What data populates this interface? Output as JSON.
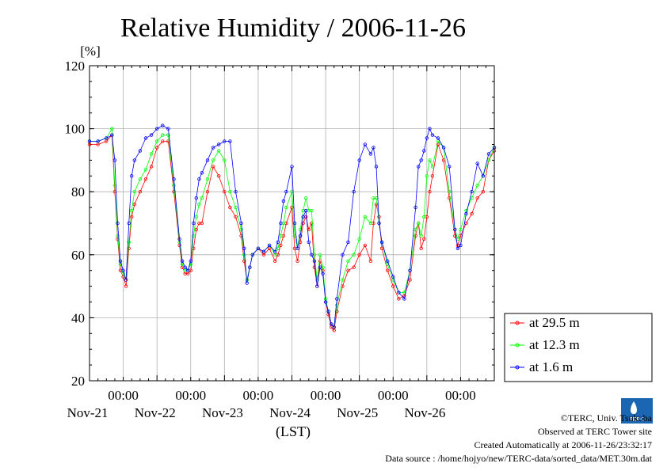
{
  "chart_data": {
    "type": "line",
    "title": "Relative Humidity / 2006-11-26",
    "ylabel": "[%]",
    "xlabel": "(LST)",
    "ylim": [
      20,
      120
    ],
    "y_ticks": [
      "20",
      "40",
      "60",
      "80",
      "100",
      "120"
    ],
    "x_range_hours": [
      0,
      144
    ],
    "x_ticks": [
      {
        "time": "00:00",
        "date": "Nov-21",
        "hour": 24
      },
      {
        "time": "00:00",
        "date": "Nov-22",
        "hour": 48
      },
      {
        "time": "00:00",
        "date": "Nov-23",
        "hour": 72
      },
      {
        "time": "00:00",
        "date": "Nov-24",
        "hour": 96
      },
      {
        "time": "00:00",
        "date": "Nov-25",
        "hour": 120
      },
      {
        "time": "00:00",
        "date": "Nov-26",
        "hour": 144
      }
    ],
    "grid": true,
    "legend_position": "right-bottom",
    "series": [
      {
        "name": "at 29.5 m",
        "color": "#ff0000",
        "x": [
          0,
          3,
          6,
          8,
          9,
          10,
          11,
          12,
          13,
          14,
          15,
          16,
          18,
          20,
          22,
          24,
          26,
          28,
          30,
          32,
          33,
          34,
          35,
          36,
          37,
          38,
          39,
          40,
          42,
          44,
          46,
          48,
          50,
          52,
          54,
          55,
          56,
          57,
          58,
          60,
          62,
          64,
          66,
          67,
          68,
          69,
          70,
          72,
          73,
          74,
          75,
          76,
          77,
          78,
          79,
          80,
          81,
          82,
          83,
          84,
          85,
          86,
          87,
          88,
          90,
          92,
          94,
          96,
          98,
          100,
          101,
          102,
          103,
          104,
          106,
          108,
          110,
          112,
          114,
          116,
          117,
          118,
          119,
          120,
          121,
          122,
          124,
          126,
          128,
          130,
          131,
          132,
          134,
          136,
          138,
          140,
          142,
          144
        ],
        "y": [
          95,
          95,
          96,
          98,
          80,
          65,
          55,
          53,
          50,
          62,
          72,
          76,
          80,
          84,
          88,
          94,
          96,
          96,
          80,
          63,
          56,
          54,
          54,
          55,
          62,
          68,
          70,
          70,
          80,
          88,
          85,
          80,
          75,
          72,
          66,
          58,
          52,
          56,
          60,
          62,
          60,
          62,
          58,
          60,
          63,
          66,
          70,
          75,
          62,
          58,
          64,
          70,
          72,
          68,
          70,
          56,
          50,
          58,
          55,
          45,
          41,
          37,
          36,
          42,
          50,
          55,
          56,
          60,
          63,
          58,
          70,
          76,
          72,
          62,
          55,
          50,
          46,
          47,
          52,
          66,
          70,
          62,
          65,
          72,
          80,
          85,
          95,
          90,
          78,
          66,
          63,
          66,
          70,
          73,
          78,
          80,
          90,
          93
        ]
      },
      {
        "name": "at 12.3 m",
        "color": "#00ff00",
        "x": [
          0,
          3,
          6,
          8,
          9,
          10,
          11,
          12,
          13,
          14,
          15,
          16,
          18,
          20,
          22,
          24,
          26,
          28,
          30,
          32,
          33,
          34,
          35,
          36,
          37,
          38,
          39,
          40,
          42,
          44,
          46,
          48,
          50,
          52,
          54,
          55,
          56,
          57,
          58,
          60,
          62,
          64,
          66,
          67,
          68,
          69,
          70,
          72,
          73,
          74,
          75,
          76,
          77,
          78,
          79,
          80,
          81,
          82,
          83,
          84,
          85,
          86,
          87,
          88,
          90,
          92,
          94,
          96,
          98,
          100,
          101,
          102,
          103,
          104,
          106,
          108,
          110,
          112,
          114,
          116,
          117,
          118,
          119,
          120,
          121,
          122,
          124,
          126,
          128,
          130,
          131,
          132,
          134,
          136,
          138,
          140,
          142,
          144
        ],
        "y": [
          96,
          96,
          97,
          100,
          82,
          66,
          57,
          54,
          52,
          64,
          74,
          80,
          84,
          87,
          92,
          96,
          98,
          98,
          82,
          64,
          57,
          55,
          55,
          57,
          66,
          72,
          76,
          78,
          84,
          90,
          93,
          90,
          80,
          75,
          68,
          60,
          52,
          56,
          60,
          62,
          61,
          63,
          60,
          62,
          66,
          70,
          75,
          80,
          66,
          62,
          68,
          74,
          78,
          74,
          74,
          60,
          52,
          60,
          56,
          46,
          42,
          38,
          37,
          44,
          52,
          58,
          60,
          65,
          72,
          70,
          78,
          78,
          70,
          64,
          57,
          52,
          48,
          48,
          55,
          68,
          70,
          66,
          72,
          85,
          90,
          88,
          96,
          94,
          80,
          68,
          65,
          68,
          74,
          78,
          82,
          85,
          90,
          94
        ]
      },
      {
        "name": "at 1.6 m",
        "color": "#0000ff",
        "x": [
          0,
          3,
          6,
          8,
          9,
          10,
          11,
          12,
          13,
          14,
          15,
          16,
          18,
          20,
          22,
          24,
          26,
          28,
          30,
          32,
          33,
          34,
          35,
          36,
          37,
          38,
          39,
          40,
          42,
          44,
          46,
          48,
          50,
          52,
          54,
          55,
          56,
          57,
          58,
          60,
          62,
          64,
          66,
          67,
          68,
          69,
          70,
          72,
          73,
          74,
          75,
          76,
          77,
          78,
          79,
          80,
          81,
          82,
          83,
          84,
          85,
          86,
          87,
          88,
          90,
          92,
          94,
          96,
          98,
          100,
          101,
          102,
          103,
          104,
          106,
          108,
          110,
          112,
          114,
          116,
          117,
          118,
          119,
          120,
          121,
          122,
          124,
          126,
          128,
          130,
          131,
          132,
          134,
          136,
          138,
          140,
          142,
          144
        ],
        "y": [
          96,
          96,
          97,
          98,
          90,
          70,
          58,
          55,
          52,
          70,
          85,
          90,
          93,
          97,
          98,
          100,
          101,
          100,
          84,
          65,
          58,
          56,
          55,
          58,
          70,
          78,
          84,
          86,
          90,
          94,
          95,
          96,
          96,
          80,
          70,
          62,
          51,
          56,
          60,
          62,
          61,
          63,
          61,
          64,
          70,
          77,
          80,
          88,
          70,
          62,
          66,
          72,
          74,
          64,
          60,
          58,
          50,
          56,
          54,
          45,
          42,
          38,
          37,
          46,
          60,
          64,
          80,
          90,
          95,
          92,
          94,
          88,
          70,
          64,
          58,
          53,
          48,
          46,
          55,
          75,
          88,
          90,
          93,
          97,
          100,
          98,
          97,
          94,
          88,
          68,
          62,
          63,
          73,
          80,
          89,
          85,
          92,
          94
        ]
      }
    ]
  },
  "legend_items": [
    "at 29.5 m",
    "at 12.3 m",
    "at 1.6 m"
  ],
  "credits": {
    "org": "©TERC, Univ. Tsukuba",
    "site": "Observed at TERC Tower site",
    "created": "Created Automatically at 2006-11-26/23:32:17",
    "source": "Data source : /home/hojyo/new/TERC-data/sorted_data/MET.30m.dat"
  },
  "logo_text": "TERC"
}
